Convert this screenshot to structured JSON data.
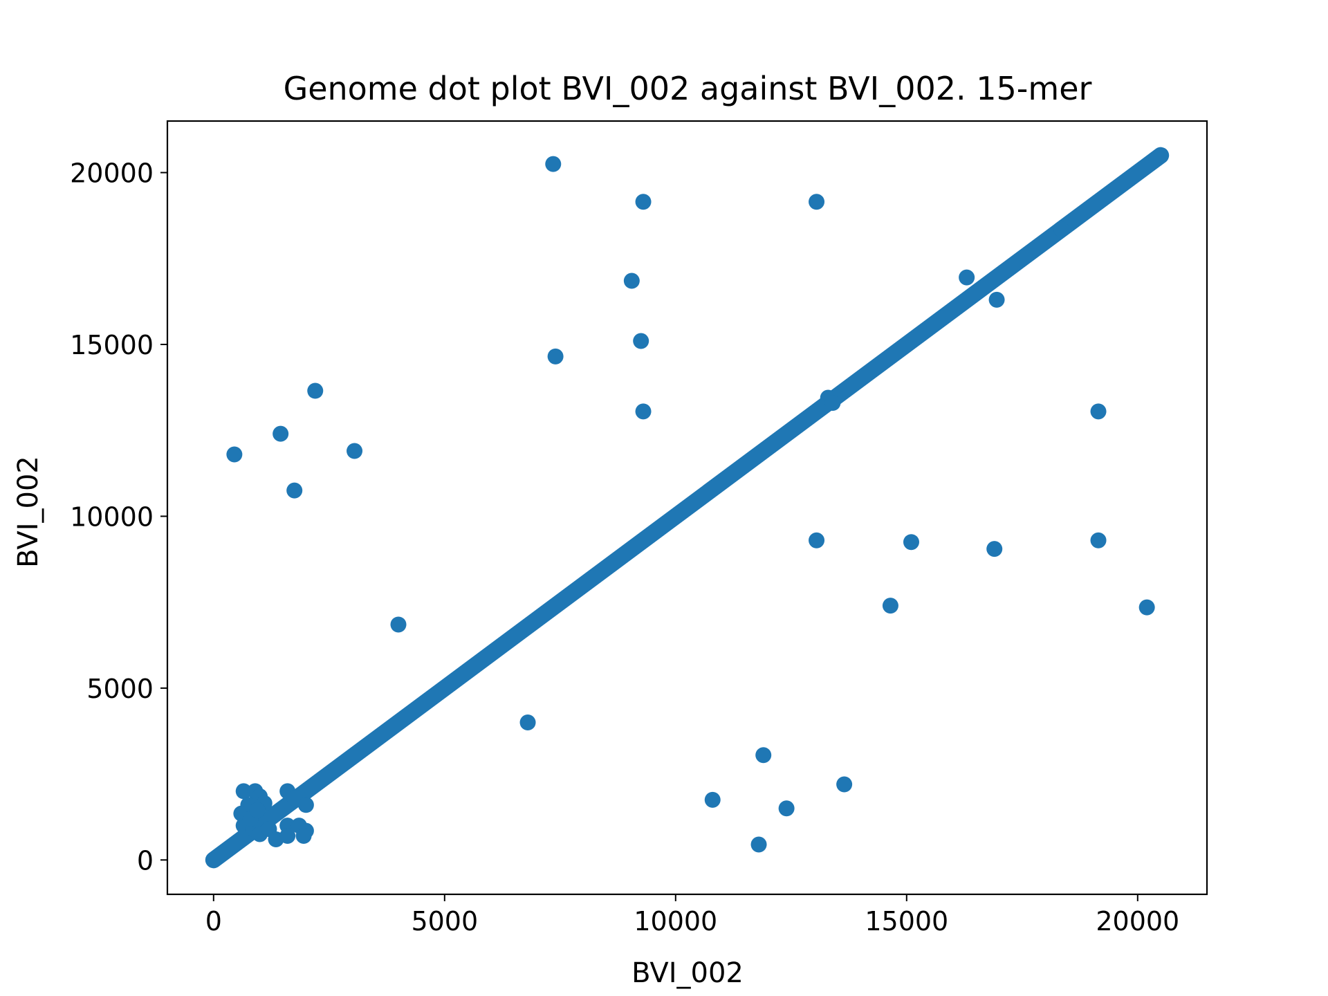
{
  "chart_data": {
    "type": "scatter",
    "title": "Genome dot plot BVI_002 against BVI_002. 15-mer",
    "xlabel": "BVI_002",
    "ylabel": "BVI_002",
    "xlim": [
      -1000,
      21500
    ],
    "ylim": [
      -1000,
      21500
    ],
    "xticks": [
      0,
      5000,
      10000,
      15000,
      20000
    ],
    "yticks": [
      0,
      5000,
      10000,
      15000,
      20000
    ],
    "xtick_labels": [
      "0",
      "5000",
      "10000",
      "15000",
      "20000"
    ],
    "ytick_labels": [
      "0",
      "5000",
      "10000",
      "15000",
      "20000"
    ],
    "grid": false,
    "color": "#1f77b4",
    "diagonal": {
      "start": 0,
      "end": 20500
    },
    "points": [
      {
        "x": 7350,
        "y": 20250
      },
      {
        "x": 9300,
        "y": 19150
      },
      {
        "x": 13050,
        "y": 19150
      },
      {
        "x": 9050,
        "y": 16850
      },
      {
        "x": 16300,
        "y": 16950
      },
      {
        "x": 16950,
        "y": 16300
      },
      {
        "x": 9250,
        "y": 15100
      },
      {
        "x": 7400,
        "y": 14650
      },
      {
        "x": 18350,
        "y": 18350
      },
      {
        "x": 2200,
        "y": 13650
      },
      {
        "x": 9300,
        "y": 13050
      },
      {
        "x": 19150,
        "y": 13050
      },
      {
        "x": 1450,
        "y": 12400
      },
      {
        "x": 450,
        "y": 11800
      },
      {
        "x": 3050,
        "y": 11900
      },
      {
        "x": 1750,
        "y": 10750
      },
      {
        "x": 13050,
        "y": 9300
      },
      {
        "x": 15100,
        "y": 9250
      },
      {
        "x": 16900,
        "y": 9050
      },
      {
        "x": 19150,
        "y": 9300
      },
      {
        "x": 14650,
        "y": 7400
      },
      {
        "x": 20200,
        "y": 7350
      },
      {
        "x": 4000,
        "y": 6850
      },
      {
        "x": 6800,
        "y": 4000
      },
      {
        "x": 11900,
        "y": 3050
      },
      {
        "x": 13650,
        "y": 2200
      },
      {
        "x": 10800,
        "y": 1750
      },
      {
        "x": 12400,
        "y": 1500
      },
      {
        "x": 11800,
        "y": 450
      },
      {
        "x": 13300,
        "y": 13450
      },
      {
        "x": 13400,
        "y": 13300
      },
      {
        "x": 650,
        "y": 2000
      },
      {
        "x": 900,
        "y": 2000
      },
      {
        "x": 1000,
        "y": 1850
      },
      {
        "x": 1100,
        "y": 1650
      },
      {
        "x": 750,
        "y": 1600
      },
      {
        "x": 600,
        "y": 1350
      },
      {
        "x": 650,
        "y": 1000
      },
      {
        "x": 850,
        "y": 900
      },
      {
        "x": 1000,
        "y": 750
      },
      {
        "x": 1200,
        "y": 900
      },
      {
        "x": 1350,
        "y": 600
      },
      {
        "x": 1600,
        "y": 2000
      },
      {
        "x": 1750,
        "y": 1800
      },
      {
        "x": 2000,
        "y": 1600
      },
      {
        "x": 1600,
        "y": 1000
      },
      {
        "x": 1850,
        "y": 1000
      },
      {
        "x": 2000,
        "y": 850
      },
      {
        "x": 1600,
        "y": 700
      },
      {
        "x": 1950,
        "y": 700
      },
      {
        "x": 800,
        "y": 1200
      },
      {
        "x": 950,
        "y": 1450
      }
    ]
  }
}
